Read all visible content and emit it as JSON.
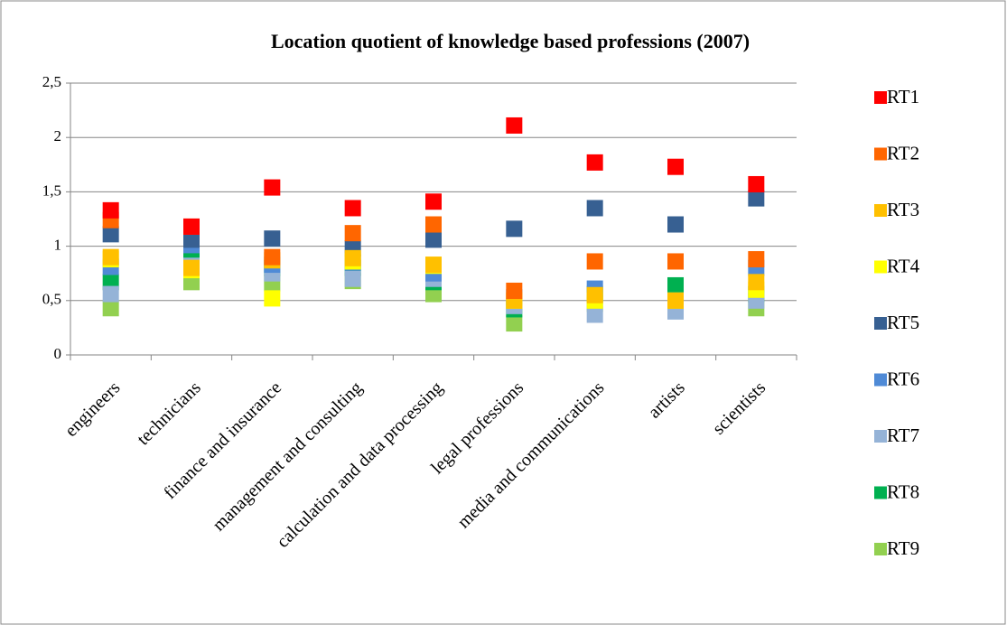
{
  "chart_data": {
    "type": "scatter",
    "title": "Location quotient of knowledge based professions (2007)",
    "categories": [
      "engineers",
      "technicians",
      "finance and insurance",
      "management and consulting",
      "calculation and data processing",
      "legal professions",
      "media and communications",
      "artists",
      "scientists"
    ],
    "series": [
      {
        "name": "RT1",
        "color": "#ff0000",
        "values": [
          1.33,
          1.18,
          1.54,
          1.35,
          1.41,
          2.11,
          1.77,
          1.73,
          1.57
        ]
      },
      {
        "name": "RT2",
        "color": "#ff6600",
        "values": [
          1.24,
          1.18,
          0.9,
          1.12,
          1.2,
          0.59,
          0.86,
          0.86,
          0.88
        ]
      },
      {
        "name": "RT3",
        "color": "#ffc000",
        "values": [
          0.9,
          0.8,
          0.87,
          0.89,
          0.83,
          0.5,
          0.55,
          0.5,
          0.67
        ]
      },
      {
        "name": "RT4",
        "color": "#ffff00",
        "values": [
          0.88,
          0.78,
          0.52,
          0.86,
          0.82,
          0.5,
          0.5,
          0.5,
          0.6
        ]
      },
      {
        "name": "RT5",
        "color": "#376092",
        "values": [
          1.11,
          1.06,
          1.07,
          0.98,
          1.06,
          1.16,
          1.35,
          1.2,
          1.44
        ]
      },
      {
        "name": "RT6",
        "color": "#4f8ad6",
        "values": [
          0.81,
          1.01,
          0.83,
          0.85,
          0.75,
          0.53,
          0.61,
          0.5,
          0.8
        ]
      },
      {
        "name": "RT7",
        "color": "#95b3d7",
        "values": [
          0.56,
          0.82,
          0.75,
          0.7,
          0.7,
          0.45,
          0.37,
          0.4,
          0.5
        ]
      },
      {
        "name": "RT8",
        "color": "#00b050",
        "values": [
          0.67,
          0.91,
          0.8,
          0.8,
          0.67,
          0.42,
          0.56,
          0.64,
          0.56
        ]
      },
      {
        "name": "RT9",
        "color": "#92d050",
        "values": [
          0.43,
          0.67,
          0.66,
          0.68,
          0.56,
          0.29,
          0.47,
          0.51,
          0.43
        ]
      }
    ],
    "ylim": [
      0,
      2.5
    ],
    "yticks": [
      0,
      {
        "value": 0.5,
        "label": "0,5"
      },
      1,
      {
        "value": 1.5,
        "label": "1,5"
      },
      2,
      {
        "value": 2.5,
        "label": "2,5"
      }
    ],
    "grid": true,
    "legend": "right"
  }
}
